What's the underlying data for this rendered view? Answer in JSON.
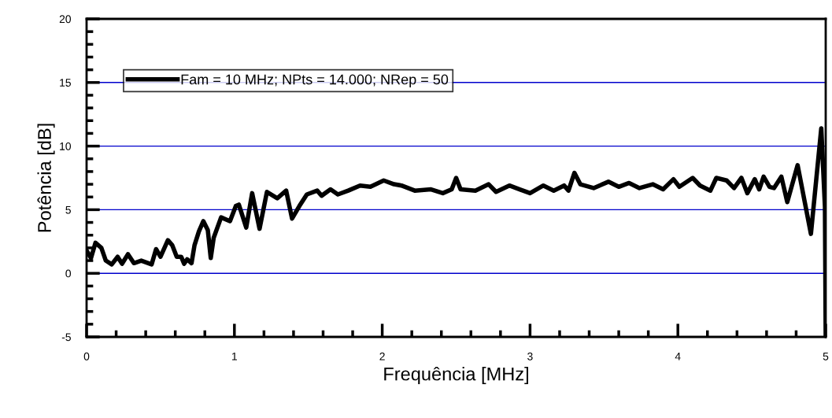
{
  "chart_data": {
    "type": "line",
    "xlabel": "Frequência [MHz]",
    "ylabel": "Potência [dB]",
    "xlim": [
      0,
      5
    ],
    "xticks": [
      0,
      1,
      2,
      3,
      4,
      5
    ],
    "ylim": [
      -5,
      20
    ],
    "yticks": [
      -5,
      0,
      5,
      10,
      15,
      20
    ],
    "grid": "y",
    "legend": "top left",
    "marker": "none",
    "line_style": "solid",
    "series": [
      {
        "name": "Fam = 10 MHz; NPts = 14.000; NRep = 50",
        "color": "#000000",
        "x": [
          0,
          0.03,
          0.06,
          0.1,
          0.13,
          0.17,
          0.21,
          0.24,
          0.28,
          0.32,
          0.37,
          0.44,
          0.47,
          0.5,
          0.55,
          0.58,
          0.61,
          0.64,
          0.66,
          0.68,
          0.71,
          0.73,
          0.76,
          0.79,
          0.82,
          0.84,
          0.86,
          0.91,
          0.97,
          1.01,
          1.03,
          1.08,
          1.12,
          1.17,
          1.22,
          1.29,
          1.35,
          1.39,
          1.44,
          1.49,
          1.56,
          1.59,
          1.65,
          1.7,
          1.77,
          1.85,
          1.92,
          2.01,
          2.08,
          2.13,
          2.22,
          2.33,
          2.41,
          2.47,
          2.5,
          2.53,
          2.63,
          2.72,
          2.77,
          2.86,
          2.93,
          3.0,
          3.09,
          3.16,
          3.23,
          3.26,
          3.3,
          3.34,
          3.43,
          3.53,
          3.6,
          3.67,
          3.74,
          3.83,
          3.9,
          3.97,
          4.01,
          4.1,
          4.15,
          4.22,
          4.26,
          4.33,
          4.38,
          4.43,
          4.47,
          4.52,
          4.55,
          4.58,
          4.62,
          4.65,
          4.7,
          4.74,
          4.81,
          4.9,
          4.97,
          4.995,
          5.0
        ],
        "values": [
          1.8,
          1.2,
          2.4,
          2.0,
          1.0,
          0.7,
          1.3,
          0.75,
          1.5,
          0.8,
          1.0,
          0.7,
          1.9,
          1.3,
          2.6,
          2.2,
          1.3,
          1.3,
          0.75,
          1.1,
          0.8,
          2.2,
          3.3,
          4.1,
          3.4,
          1.2,
          2.8,
          4.4,
          4.1,
          5.3,
          5.4,
          3.6,
          6.3,
          3.5,
          6.4,
          5.9,
          6.5,
          4.3,
          5.3,
          6.2,
          6.5,
          6.1,
          6.6,
          6.2,
          6.5,
          6.9,
          6.8,
          7.3,
          7.0,
          6.9,
          6.5,
          6.6,
          6.3,
          6.6,
          7.5,
          6.6,
          6.5,
          7.0,
          6.4,
          6.9,
          6.6,
          6.3,
          6.9,
          6.5,
          6.9,
          6.5,
          7.9,
          7.0,
          6.7,
          7.2,
          6.8,
          7.1,
          6.7,
          7.0,
          6.6,
          7.4,
          6.8,
          7.5,
          6.9,
          6.5,
          7.5,
          7.3,
          6.7,
          7.5,
          6.3,
          7.4,
          6.6,
          7.6,
          6.8,
          6.7,
          7.6,
          5.6,
          8.5,
          3.1,
          11.4,
          5.2,
          -5
        ]
      }
    ]
  }
}
